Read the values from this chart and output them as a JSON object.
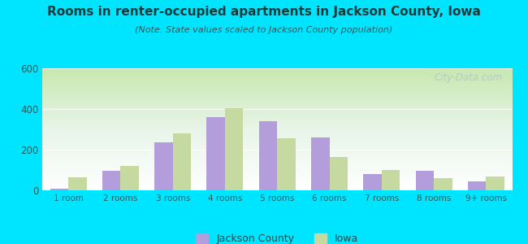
{
  "title": "Rooms in renter-occupied apartments in Jackson County, Iowa",
  "subtitle": "(Note: State values scaled to Jackson County population)",
  "categories": [
    "1 room",
    "2 rooms",
    "3 rooms",
    "4 rooms",
    "5 rooms",
    "6 rooms",
    "7 rooms",
    "8 rooms",
    "9+ rooms"
  ],
  "jackson_county": [
    10,
    95,
    235,
    360,
    340,
    260,
    80,
    95,
    45
  ],
  "iowa": [
    65,
    120,
    280,
    405,
    255,
    165,
    100,
    60,
    70
  ],
  "jackson_color": "#b39ddb",
  "iowa_color": "#c5d9a0",
  "background_outer": "#00e5ff",
  "ylim": [
    0,
    600
  ],
  "yticks": [
    0,
    200,
    400,
    600
  ],
  "bar_width": 0.35,
  "legend_jackson": "Jackson County",
  "legend_iowa": "Iowa",
  "watermark": "City-Data.com",
  "title_color": "#1a3a3a",
  "subtitle_color": "#2a5a5a"
}
